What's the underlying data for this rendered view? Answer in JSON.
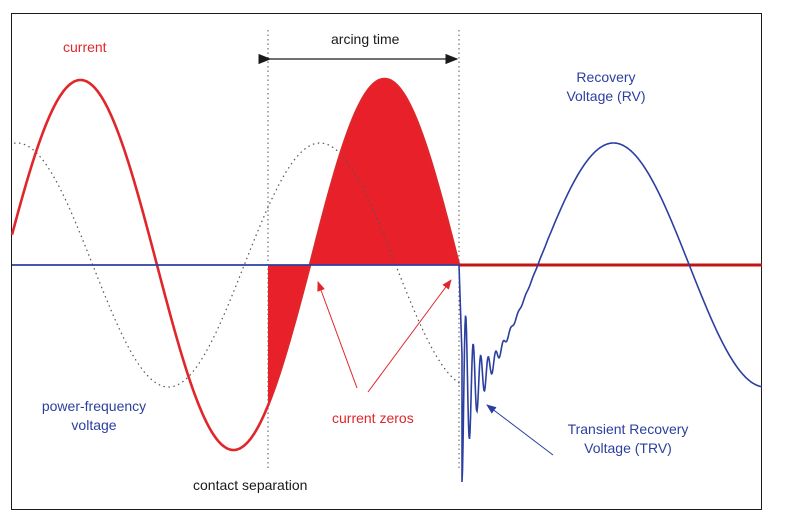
{
  "labels": {
    "current": "current",
    "arcing_time": "arcing time",
    "recovery_voltage_line1": "Recovery",
    "recovery_voltage_line2": "Voltage (RV)",
    "power_frequency_line1": "power-frequency",
    "power_frequency_line2": "voltage",
    "current_zeros": "current zeros",
    "trv_line1": "Transient Recovery",
    "trv_line2": "Voltage (TRV)",
    "contact_separation": "contact separation"
  },
  "colors": {
    "current": "#e0262b",
    "voltage": "#2b3fa0",
    "arc_fill": "#e8202a",
    "frame": "#1a1a1a",
    "dotted": "#555555"
  }
}
